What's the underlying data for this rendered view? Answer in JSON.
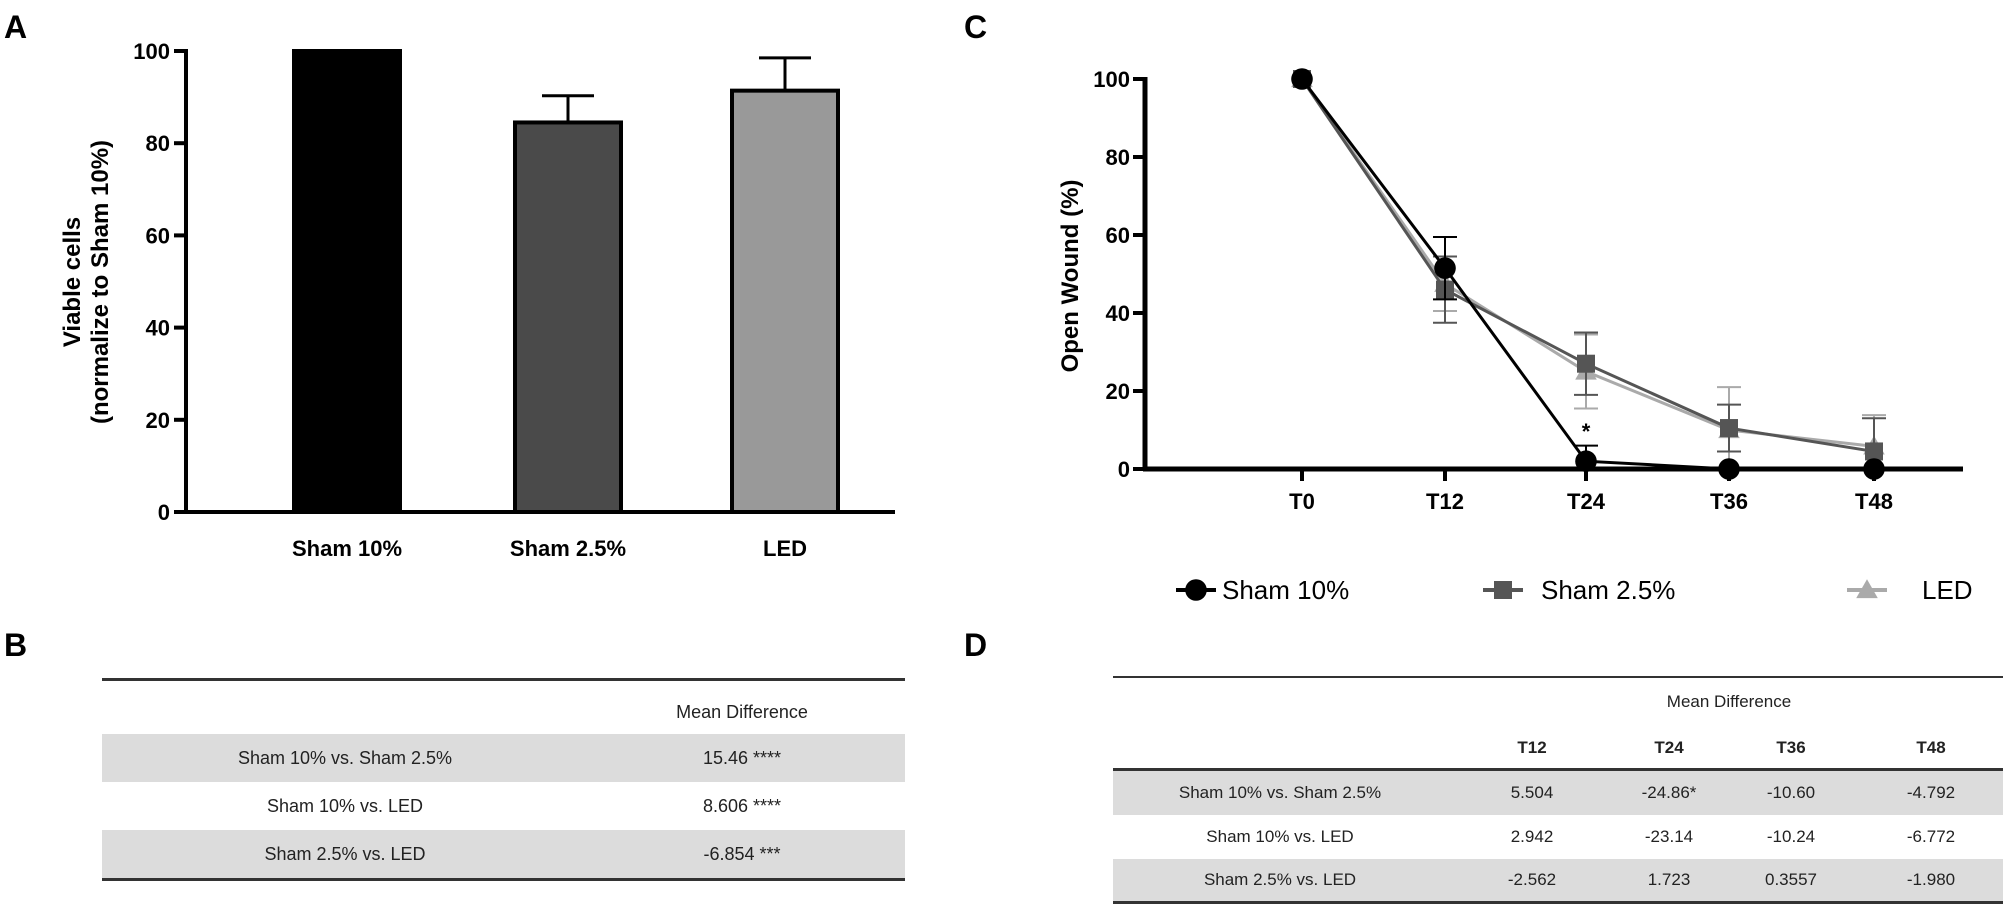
{
  "panels": {
    "a": "A",
    "b": "B",
    "c": "C",
    "d": "D"
  },
  "chart_data": [
    {
      "type": "bar",
      "panel": "A",
      "categories": [
        "Sham 10%",
        "Sham 2.5%",
        "LED"
      ],
      "values": [
        100,
        84.5,
        91.4
      ],
      "error_upper": [
        0,
        5.8,
        7.1
      ],
      "colors": [
        "#000000",
        "#4a4a4a",
        "#999999"
      ],
      "ylabel": [
        "Viable cells",
        "(normalize to Sham 10%)"
      ],
      "ylim": [
        0,
        100
      ],
      "yticks": [
        "0",
        "20",
        "40",
        "60",
        "80",
        "100"
      ],
      "grid": false
    },
    {
      "type": "line",
      "panel": "C",
      "x": [
        "T0",
        "T12",
        "T24",
        "T36",
        "T48"
      ],
      "ylabel": "Open Wound (%)",
      "ylim": [
        0,
        100
      ],
      "yticks": [
        "0",
        "20",
        "40",
        "60",
        "80",
        "100"
      ],
      "grid": false,
      "legend_position": "bottom",
      "annotations": [
        {
          "x": "T24",
          "text": "*"
        }
      ],
      "series": [
        {
          "name": "Sham 10%",
          "marker": "circle",
          "color": "#000000",
          "values": [
            100,
            51.5,
            2,
            0,
            0
          ],
          "error": [
            0,
            8,
            4,
            0,
            0
          ]
        },
        {
          "name": "Sham 2.5%",
          "marker": "square",
          "color": "#555555",
          "values": [
            100,
            46,
            27,
            10.5,
            4.5
          ],
          "error": [
            0,
            8.5,
            8,
            6,
            8.5
          ]
        },
        {
          "name": "LED",
          "marker": "triangle",
          "color": "#aaaaaa",
          "values": [
            100,
            47.5,
            25,
            10,
            5.8
          ],
          "error": [
            0,
            7,
            9.5,
            11,
            8
          ]
        }
      ]
    }
  ],
  "table_b": {
    "header": "Mean Difference",
    "rows": [
      {
        "label": "Sham 10% vs. Sham 2.5%",
        "value": "15.46 ****"
      },
      {
        "label": "Sham 10% vs. LED",
        "value": "8.606 ****"
      },
      {
        "label": "Sham 2.5% vs. LED",
        "value": "-6.854 ***"
      }
    ]
  },
  "table_d": {
    "header": "Mean Difference",
    "columns": [
      "T12",
      "T24",
      "T36",
      "T48"
    ],
    "rows": [
      {
        "label": "Sham 10% vs. Sham 2.5%",
        "values": [
          "5.504",
          "-24.86*",
          "-10.60",
          "-4.792"
        ]
      },
      {
        "label": "Sham 10% vs. LED",
        "values": [
          "2.942",
          "-23.14",
          "-10.24",
          "-6.772"
        ]
      },
      {
        "label": "Sham 2.5% vs. LED",
        "values": [
          "-2.562",
          "1.723",
          "0.3557",
          "-1.980"
        ]
      }
    ]
  }
}
